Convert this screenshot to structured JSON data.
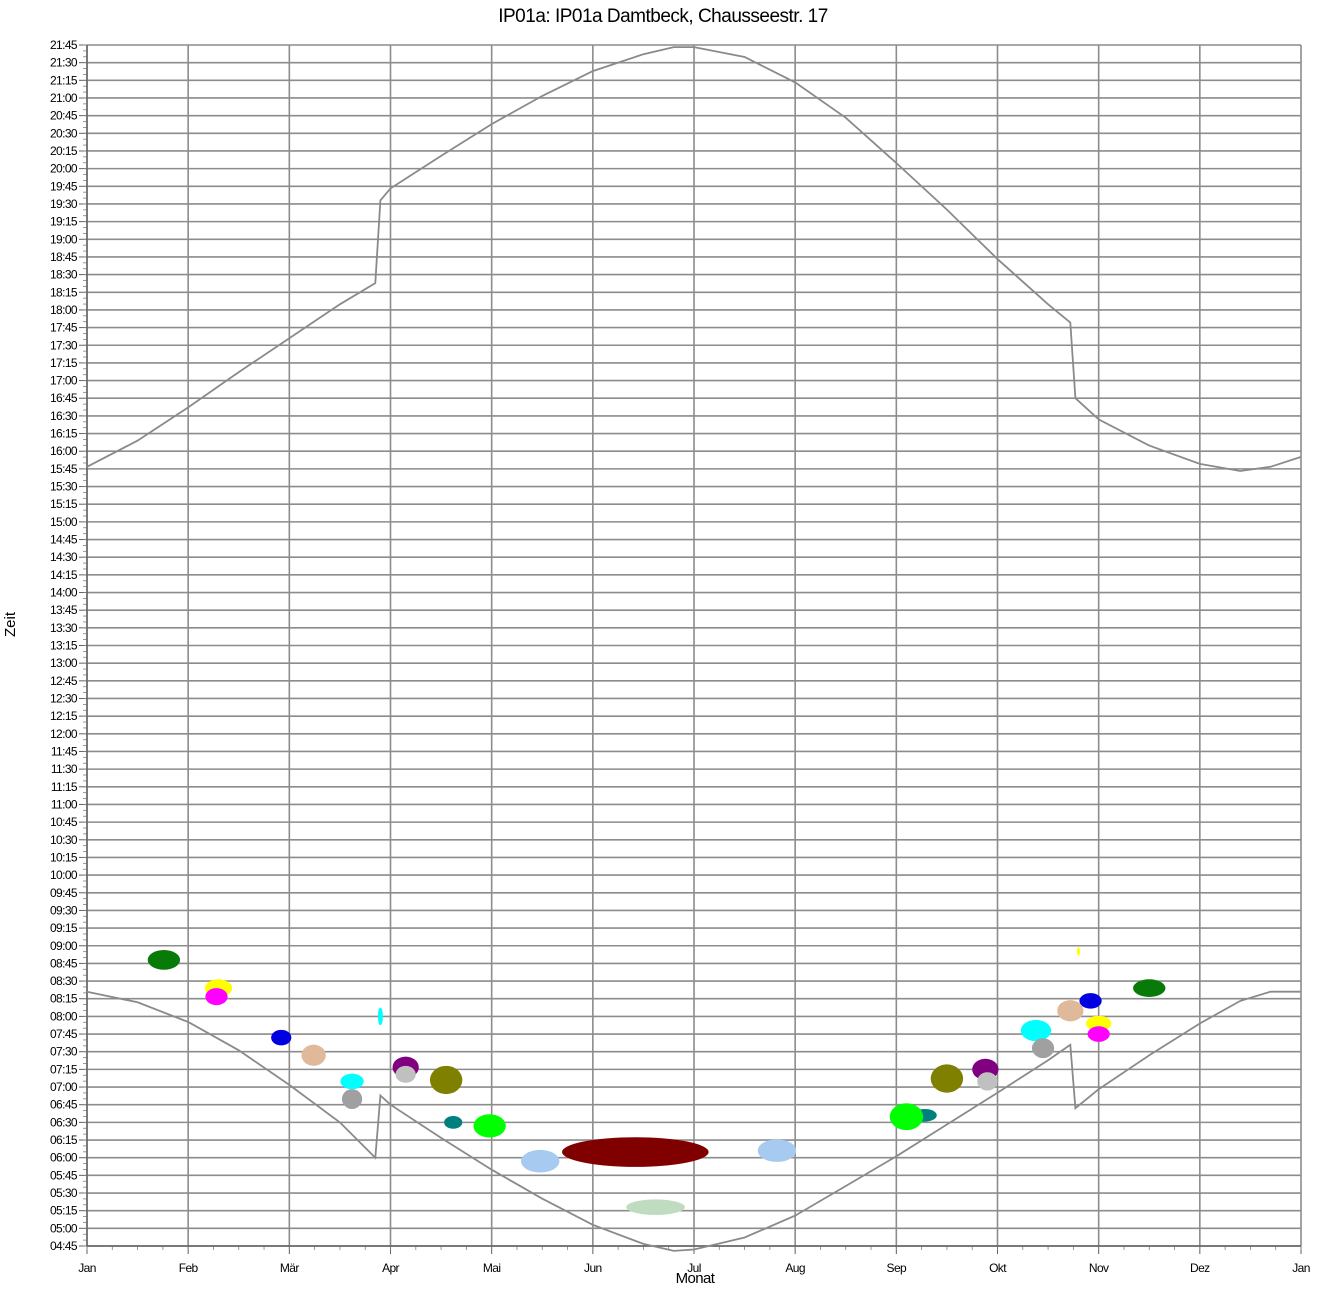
{
  "chart_data": {
    "type": "scatter",
    "title": "IP01a: IP01a Damtbeck, Chausseestr. 17",
    "xlabel": "Monat",
    "ylabel": "Zeit",
    "x_ticks": [
      "Jan",
      "Feb",
      "Mär",
      "Apr",
      "Mai",
      "Jun",
      "Jul",
      "Aug",
      "Sep",
      "Okt",
      "Nov",
      "Dez",
      "Jan"
    ],
    "y_ticks": [
      "21:45",
      "21:30",
      "21:15",
      "21:00",
      "20:45",
      "20:30",
      "20:15",
      "20:00",
      "19:45",
      "19:30",
      "19:15",
      "19:00",
      "18:45",
      "18:30",
      "18:15",
      "18:00",
      "17:45",
      "17:30",
      "17:15",
      "17:00",
      "16:45",
      "16:30",
      "16:15",
      "16:00",
      "15:45",
      "15:30",
      "15:15",
      "15:00",
      "14:45",
      "14:30",
      "14:15",
      "14:00",
      "13:45",
      "13:30",
      "13:15",
      "13:00",
      "12:45",
      "12:30",
      "12:15",
      "12:00",
      "11:45",
      "11:30",
      "11:15",
      "11:00",
      "10:45",
      "10:30",
      "10:15",
      "10:00",
      "09:45",
      "09:30",
      "09:15",
      "09:00",
      "08:45",
      "08:30",
      "08:15",
      "08:00",
      "07:45",
      "07:30",
      "07:15",
      "07:00",
      "06:45",
      "06:30",
      "06:15",
      "06:00",
      "05:45",
      "05:30",
      "05:15",
      "05:00",
      "04:45"
    ],
    "ylim": [
      "04:45",
      "21:45"
    ],
    "xlim": [
      0,
      12
    ],
    "grid": true,
    "sunset_curve": [
      [
        0.0,
        15.78
      ],
      [
        0.5,
        16.15
      ],
      [
        1.0,
        16.62
      ],
      [
        1.5,
        17.12
      ],
      [
        2.0,
        17.6
      ],
      [
        2.5,
        18.08
      ],
      [
        2.85,
        18.38
      ],
      [
        2.9,
        19.55
      ],
      [
        3.0,
        19.72
      ],
      [
        3.5,
        20.18
      ],
      [
        4.0,
        20.63
      ],
      [
        4.5,
        21.03
      ],
      [
        5.0,
        21.38
      ],
      [
        5.5,
        21.62
      ],
      [
        5.8,
        21.72
      ],
      [
        6.0,
        21.72
      ],
      [
        6.5,
        21.58
      ],
      [
        7.0,
        21.22
      ],
      [
        7.5,
        20.72
      ],
      [
        8.0,
        20.08
      ],
      [
        8.5,
        19.42
      ],
      [
        9.0,
        18.72
      ],
      [
        9.5,
        18.08
      ],
      [
        9.72,
        17.82
      ],
      [
        9.77,
        16.75
      ],
      [
        10.0,
        16.45
      ],
      [
        10.5,
        16.08
      ],
      [
        11.0,
        15.82
      ],
      [
        11.4,
        15.72
      ],
      [
        11.7,
        15.78
      ],
      [
        12.0,
        15.92
      ]
    ],
    "sunrise_curve": [
      [
        0.0,
        8.35
      ],
      [
        0.5,
        8.2
      ],
      [
        1.0,
        7.92
      ],
      [
        1.5,
        7.52
      ],
      [
        2.0,
        7.03
      ],
      [
        2.5,
        6.5
      ],
      [
        2.85,
        6.0
      ],
      [
        2.9,
        6.88
      ],
      [
        3.0,
        6.75
      ],
      [
        3.5,
        6.28
      ],
      [
        4.0,
        5.83
      ],
      [
        4.5,
        5.42
      ],
      [
        5.0,
        5.05
      ],
      [
        5.5,
        4.78
      ],
      [
        5.8,
        4.68
      ],
      [
        6.0,
        4.7
      ],
      [
        6.5,
        4.87
      ],
      [
        7.0,
        5.18
      ],
      [
        7.5,
        5.6
      ],
      [
        8.0,
        6.02
      ],
      [
        8.5,
        6.47
      ],
      [
        9.0,
        6.92
      ],
      [
        9.5,
        7.38
      ],
      [
        9.72,
        7.6
      ],
      [
        9.77,
        6.7
      ],
      [
        10.0,
        6.97
      ],
      [
        10.5,
        7.45
      ],
      [
        11.0,
        7.9
      ],
      [
        11.4,
        8.22
      ],
      [
        11.7,
        8.35
      ],
      [
        12.0,
        8.35
      ]
    ],
    "shadow_events": [
      {
        "month": 0.76,
        "time": 8.8,
        "w": 0.32,
        "h": 0.28,
        "color": "#087a08"
      },
      {
        "month": 1.3,
        "time": 8.4,
        "w": 0.27,
        "h": 0.25,
        "color": "#ffff00"
      },
      {
        "month": 1.28,
        "time": 8.28,
        "w": 0.22,
        "h": 0.24,
        "color": "#ff00ff"
      },
      {
        "month": 1.92,
        "time": 7.7,
        "w": 0.2,
        "h": 0.22,
        "color": "#0000e0"
      },
      {
        "month": 2.24,
        "time": 7.45,
        "w": 0.24,
        "h": 0.3,
        "color": "#e0b89a"
      },
      {
        "month": 2.62,
        "time": 7.08,
        "w": 0.23,
        "h": 0.22,
        "color": "#00ffff"
      },
      {
        "month": 2.62,
        "time": 6.83,
        "w": 0.2,
        "h": 0.28,
        "color": "#a0a0a0"
      },
      {
        "month": 2.9,
        "time": 8.0,
        "w": 0.05,
        "h": 0.25,
        "color": "#00ffff"
      },
      {
        "month": 3.15,
        "time": 7.28,
        "w": 0.26,
        "h": 0.3,
        "color": "#800080"
      },
      {
        "month": 3.15,
        "time": 7.18,
        "w": 0.2,
        "h": 0.24,
        "color": "#c0c0c0"
      },
      {
        "month": 3.55,
        "time": 7.1,
        "w": 0.32,
        "h": 0.4,
        "color": "#7f7f00"
      },
      {
        "month": 3.62,
        "time": 6.5,
        "w": 0.18,
        "h": 0.18,
        "color": "#007f7f"
      },
      {
        "month": 3.98,
        "time": 6.45,
        "w": 0.32,
        "h": 0.33,
        "color": "#00ff00"
      },
      {
        "month": 5.42,
        "time": 6.08,
        "w": 1.45,
        "h": 0.42,
        "color": "#800000"
      },
      {
        "month": 4.48,
        "time": 5.95,
        "w": 0.38,
        "h": 0.32,
        "color": "#a6caf0"
      },
      {
        "month": 6.82,
        "time": 6.1,
        "w": 0.38,
        "h": 0.32,
        "color": "#a6caf0"
      },
      {
        "month": 5.62,
        "time": 5.3,
        "w": 0.58,
        "h": 0.22,
        "color": "#c0dcc0"
      },
      {
        "month": 8.28,
        "time": 6.6,
        "w": 0.24,
        "h": 0.18,
        "color": "#007f7f"
      },
      {
        "month": 8.1,
        "time": 6.58,
        "w": 0.33,
        "h": 0.38,
        "color": "#00ff00"
      },
      {
        "month": 8.5,
        "time": 7.12,
        "w": 0.32,
        "h": 0.4,
        "color": "#7f7f00"
      },
      {
        "month": 8.88,
        "time": 7.25,
        "w": 0.26,
        "h": 0.3,
        "color": "#800080"
      },
      {
        "month": 8.9,
        "time": 7.08,
        "w": 0.2,
        "h": 0.26,
        "color": "#c0c0c0"
      },
      {
        "month": 9.38,
        "time": 7.8,
        "w": 0.3,
        "h": 0.3,
        "color": "#00ffff"
      },
      {
        "month": 9.45,
        "time": 7.55,
        "w": 0.22,
        "h": 0.28,
        "color": "#a0a0a0"
      },
      {
        "month": 9.92,
        "time": 8.22,
        "w": 0.22,
        "h": 0.22,
        "color": "#0000e0"
      },
      {
        "month": 9.72,
        "time": 8.08,
        "w": 0.26,
        "h": 0.3,
        "color": "#e0b89a"
      },
      {
        "month": 9.8,
        "time": 8.92,
        "w": 0.03,
        "h": 0.12,
        "color": "#ffff00"
      },
      {
        "month": 10.0,
        "time": 7.9,
        "w": 0.25,
        "h": 0.22,
        "color": "#ffff00"
      },
      {
        "month": 10.0,
        "time": 7.75,
        "w": 0.22,
        "h": 0.22,
        "color": "#ff00ff"
      },
      {
        "month": 10.5,
        "time": 8.4,
        "w": 0.32,
        "h": 0.25,
        "color": "#087a08"
      }
    ]
  }
}
